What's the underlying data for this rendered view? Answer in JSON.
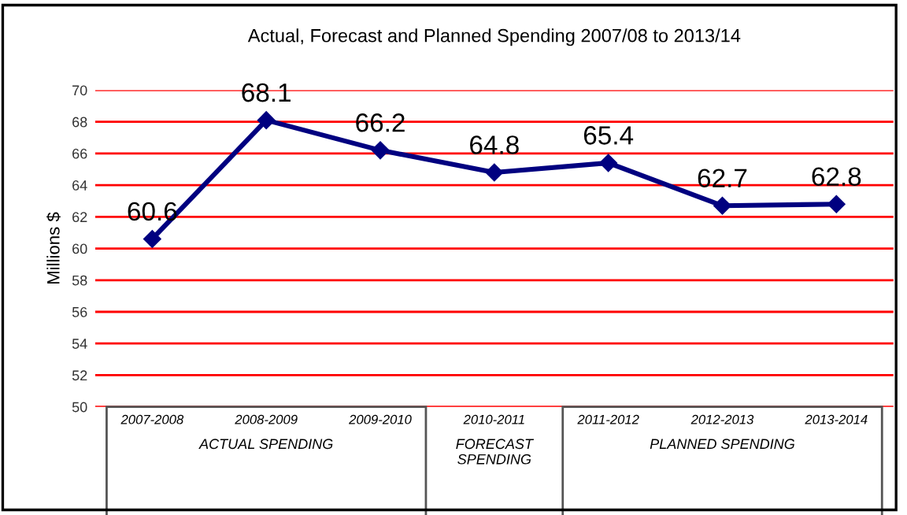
{
  "chart_data": {
    "type": "line",
    "title": "Actual, Forecast and Planned Spending 2007/08 to 2013/14",
    "ylabel": "Millions $",
    "categories": [
      "2007-2008",
      "2008-2009",
      "2009-2010",
      "2010-2011",
      "2011-2012",
      "2012-2013",
      "2013-2014"
    ],
    "series": [
      {
        "color": "#000080",
        "values": [
          60.6,
          68.1,
          66.2,
          64.8,
          65.4,
          62.7,
          62.8
        ]
      }
    ],
    "ylim": [
      50,
      70
    ],
    "yticks": [
      50,
      52,
      54,
      56,
      58,
      60,
      62,
      64,
      66,
      68,
      70
    ],
    "grid": "y",
    "marker": "diamond",
    "line_style": "solid",
    "data_labels": true,
    "annotations": [
      "ACTUAL SPENDING",
      "FORECAST\nSPENDING",
      "PLANNED SPENDING"
    ]
  }
}
